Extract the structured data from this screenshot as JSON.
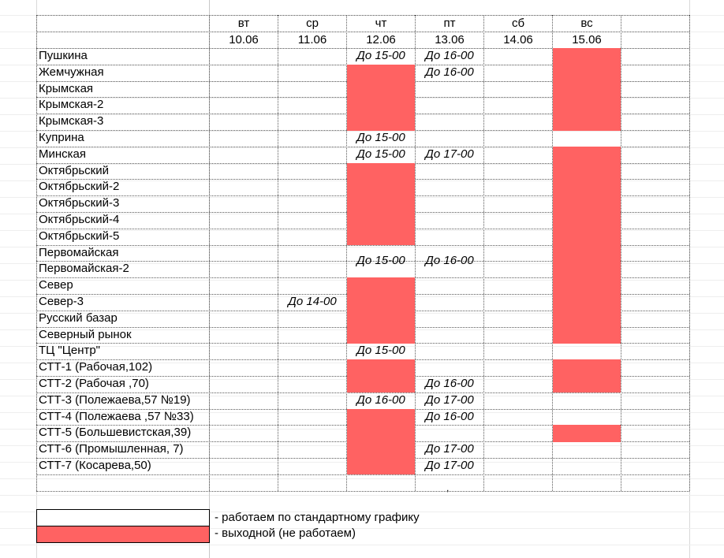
{
  "days": [
    {
      "weekday": "вт",
      "date": "10.06"
    },
    {
      "weekday": "ср",
      "date": "11.06"
    },
    {
      "weekday": "чт",
      "date": "12.06"
    },
    {
      "weekday": "пт",
      "date": "13.06"
    },
    {
      "weekday": "сб",
      "date": "14.06"
    },
    {
      "weekday": "вс",
      "date": "15.06"
    }
  ],
  "rows": [
    {
      "name": "Пушкина",
      "cells": [
        "",
        "",
        "До 15-00",
        "До 16-00",
        "",
        ""
      ],
      "off": [
        false,
        false,
        false,
        false,
        false,
        true
      ]
    },
    {
      "name": "Жемчужная",
      "cells": [
        "",
        "",
        "",
        "До 16-00",
        "",
        ""
      ],
      "off": [
        false,
        false,
        true,
        false,
        false,
        true
      ]
    },
    {
      "name": "Крымская",
      "cells": [
        "",
        "",
        "",
        "",
        "",
        ""
      ],
      "off": [
        false,
        false,
        true,
        false,
        false,
        true
      ]
    },
    {
      "name": "Крымская-2",
      "cells": [
        "",
        "",
        "",
        "",
        "",
        ""
      ],
      "off": [
        false,
        false,
        true,
        false,
        false,
        true
      ]
    },
    {
      "name": "Крымская-3",
      "cells": [
        "",
        "",
        "",
        "",
        "",
        ""
      ],
      "off": [
        false,
        false,
        true,
        false,
        false,
        true
      ]
    },
    {
      "name": "Куприна",
      "cells": [
        "",
        "",
        "До 15-00",
        "",
        "",
        ""
      ],
      "off": [
        false,
        false,
        false,
        false,
        false,
        false
      ]
    },
    {
      "name": "Минская",
      "cells": [
        "",
        "",
        "До 15-00",
        "До 17-00",
        "",
        ""
      ],
      "off": [
        false,
        false,
        false,
        false,
        false,
        true
      ]
    },
    {
      "name": "Октябрьский",
      "cells": [
        "",
        "",
        "",
        "",
        "",
        ""
      ],
      "off": [
        false,
        false,
        true,
        false,
        false,
        true
      ]
    },
    {
      "name": "Октябрьский-2",
      "cells": [
        "",
        "",
        "",
        "",
        "",
        ""
      ],
      "off": [
        false,
        false,
        true,
        false,
        false,
        true
      ]
    },
    {
      "name": "Октябрьский-3",
      "cells": [
        "",
        "",
        "",
        "",
        "",
        ""
      ],
      "off": [
        false,
        false,
        true,
        false,
        false,
        true
      ]
    },
    {
      "name": "Октябрьский-4",
      "cells": [
        "",
        "",
        "",
        "",
        "",
        ""
      ],
      "off": [
        false,
        false,
        true,
        false,
        false,
        true
      ]
    },
    {
      "name": "Октябрьский-5",
      "cells": [
        "",
        "",
        "",
        "",
        "",
        ""
      ],
      "off": [
        false,
        false,
        true,
        false,
        false,
        true
      ]
    },
    {
      "name": "Первомайская",
      "cells": [
        "",
        "",
        "",
        "",
        "",
        ""
      ],
      "off": [
        false,
        false,
        false,
        false,
        false,
        true
      ]
    },
    {
      "name": "Первомайская-2",
      "cells": [
        "",
        "",
        "",
        "",
        "",
        ""
      ],
      "off": [
        false,
        false,
        false,
        false,
        false,
        true
      ]
    },
    {
      "name": "Север",
      "cells": [
        "",
        "",
        "",
        "",
        "",
        ""
      ],
      "off": [
        false,
        false,
        true,
        false,
        false,
        true
      ]
    },
    {
      "name": "Север-3",
      "cells": [
        "",
        "До 14-00",
        "",
        "",
        "",
        ""
      ],
      "off": [
        false,
        false,
        true,
        false,
        false,
        true
      ]
    },
    {
      "name": "Русский базар",
      "cells": [
        "",
        "",
        "",
        "",
        "",
        ""
      ],
      "off": [
        false,
        false,
        true,
        false,
        false,
        true
      ]
    },
    {
      "name": "Северный рынок",
      "cells": [
        "",
        "",
        "",
        "",
        "",
        ""
      ],
      "off": [
        false,
        false,
        true,
        false,
        false,
        true
      ]
    },
    {
      "name": "ТЦ \"Центр\"",
      "cells": [
        "",
        "",
        "До 15-00",
        "",
        "",
        ""
      ],
      "off": [
        false,
        false,
        false,
        false,
        false,
        false
      ]
    },
    {
      "name": "СТТ-1 (Рабочая,102)",
      "cells": [
        "",
        "",
        "",
        "",
        "",
        ""
      ],
      "off": [
        false,
        false,
        true,
        false,
        false,
        true
      ]
    },
    {
      "name": "СТТ-2 (Рабочая ,70)",
      "cells": [
        "",
        "",
        "",
        "До 16-00",
        "",
        ""
      ],
      "off": [
        false,
        false,
        true,
        false,
        false,
        true
      ]
    },
    {
      "name": "СТТ-3 (Полежаева,57  №19)",
      "cells": [
        "",
        "",
        "До 16-00",
        "До 17-00",
        "",
        ""
      ],
      "off": [
        false,
        false,
        false,
        false,
        false,
        false
      ]
    },
    {
      "name": "СТТ-4 (Полежаева ,57  №33)",
      "cells": [
        "",
        "",
        "",
        "До 16-00",
        "",
        ""
      ],
      "off": [
        false,
        false,
        true,
        false,
        false,
        false
      ]
    },
    {
      "name": "СТТ-5 (Большевистская,39)",
      "cells": [
        "",
        "",
        "",
        "",
        "",
        ""
      ],
      "off": [
        false,
        false,
        true,
        false,
        false,
        true
      ]
    },
    {
      "name": "СТТ-6 (Промышленная, 7)",
      "cells": [
        "",
        "",
        "",
        "До 17-00",
        "",
        ""
      ],
      "off": [
        false,
        false,
        true,
        false,
        false,
        false
      ]
    },
    {
      "name": "СТТ-7 (Косарева,50)",
      "cells": [
        "",
        "",
        "",
        "До 17-00",
        "",
        ""
      ],
      "off": [
        false,
        false,
        true,
        false,
        false,
        false
      ]
    }
  ],
  "merged": [
    {
      "text": "До 15-00",
      "col": 2,
      "row": 12,
      "span": 2
    },
    {
      "text": "До 16-00",
      "col": 3,
      "row": 12,
      "span": 2
    }
  ],
  "stray_mark": ",",
  "legend": [
    {
      "text": "- работаем по стандартному графику",
      "color": "#ffffff"
    },
    {
      "text": "- выходной (не работаем)",
      "color": "#ff6262"
    }
  ],
  "colors": {
    "off_day": "#ff6262",
    "grid": "#5a5a5a"
  }
}
